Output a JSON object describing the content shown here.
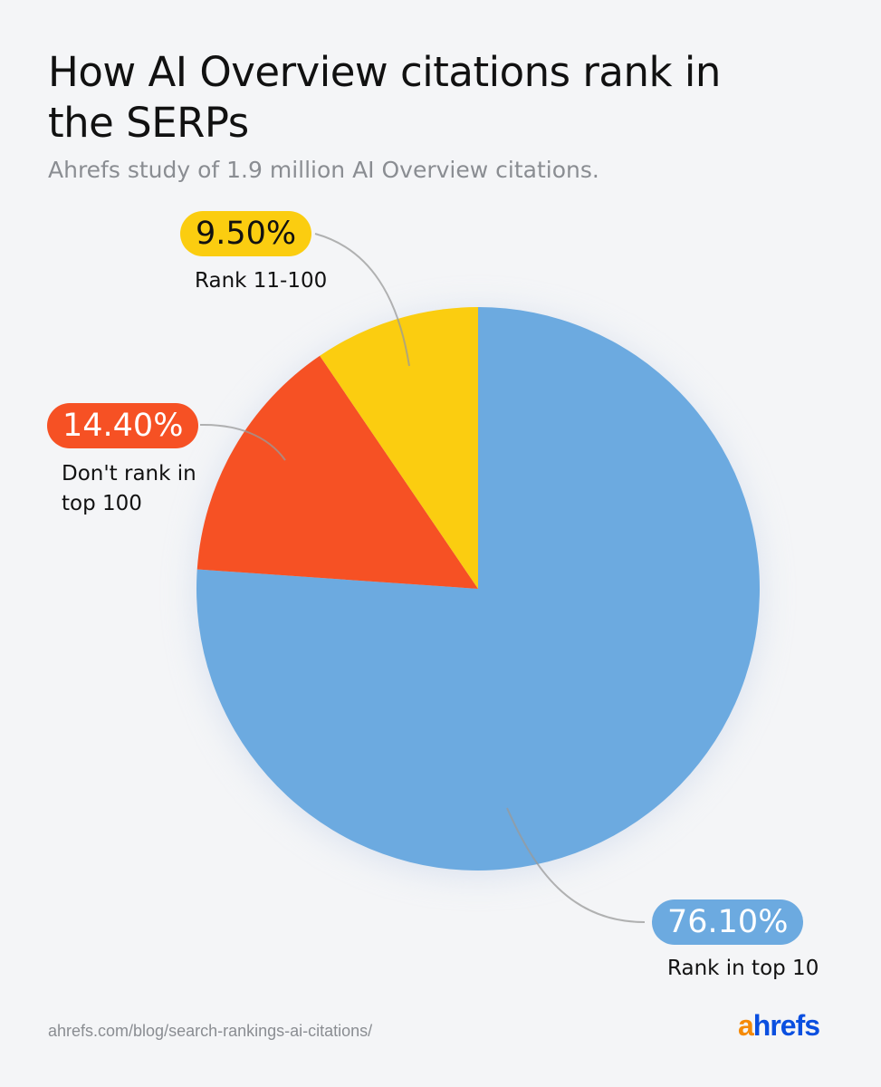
{
  "title": "How AI Overview citations rank in the SERPs",
  "subtitle": "Ahrefs study of 1.9 million AI Overview citations.",
  "source": "ahrefs.com/blog/search-rankings-ai-citations/",
  "logo": {
    "text": "ahrefs",
    "a_color": "#f58a07",
    "rest_color": "#0a4fe0"
  },
  "chart_data": {
    "type": "pie",
    "start": "top, clockwise",
    "slices": [
      {
        "label": "Rank in top 10",
        "value": 76.1,
        "display": "76.10%",
        "color": "#6caae0",
        "text_color": "#ffffff"
      },
      {
        "label": "Don't rank in top 100",
        "value": 14.4,
        "display": "14.40%",
        "color": "#f65124",
        "text_color": "#ffffff"
      },
      {
        "label": "Rank 11-100",
        "value": 9.5,
        "display": "9.50%",
        "color": "#fbcd10",
        "text_color": "#111111"
      }
    ]
  }
}
